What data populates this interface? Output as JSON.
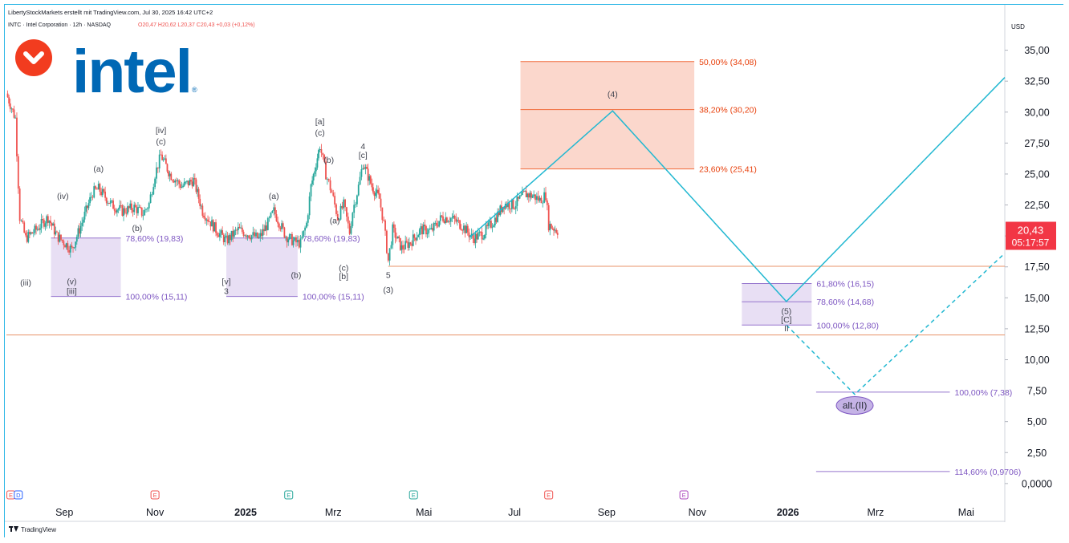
{
  "header": {
    "publisher": "LibertyStockMarkets erstellt mit TradingView.com, Jul 30, 2025 16:42 UTC+2",
    "symbol_line": "INTC · Intel Corporation · 12h · NASDAQ",
    "ohlc": "O20,47  H20,62  L20,37  C20,43  +0,03 (+0,12%)"
  },
  "logo": {
    "text": "intel",
    "registered": "®",
    "brand_color": "#0068b5",
    "badge_color": "#f23c1f"
  },
  "footer": {
    "brand": "TradingView"
  },
  "price_label": {
    "price": "20,43",
    "countdown": "05:17:57",
    "color": "#f23645"
  },
  "colors": {
    "candle_up": "#26a69a",
    "candle_down": "#ef5350",
    "projection": "#22b8d1",
    "fib_red": "#e8400c",
    "fib_purple": "#7e57c2",
    "support": "#e8936a"
  },
  "chart_data": {
    "type": "candlestick",
    "currency": "USD",
    "timeframe": "12h",
    "ylim": [
      -1.5,
      37.5
    ],
    "y_ticks": [
      35,
      32.5,
      30,
      27.5,
      25,
      22.5,
      20,
      17.5,
      15,
      12.5,
      10,
      7.5,
      5,
      2.5,
      0
    ],
    "y_tick_labels": [
      "35,00",
      "32,50",
      "30,00",
      "27,50",
      "25,00",
      "22,50",
      "20,00",
      "17,50",
      "15,00",
      "12,50",
      "10,00",
      "7,50",
      "5,00",
      "2,50",
      "0,0000"
    ],
    "x_range": [
      "2025-07-24T00:00",
      "2026-05-27T00:00"
    ],
    "x_ticks": [
      {
        "date": "2024-09-01",
        "label": "Sep",
        "bold": false
      },
      {
        "date": "2024-11-01",
        "label": "Nov",
        "bold": false
      },
      {
        "date": "2025-01-01",
        "label": "2025",
        "bold": true
      },
      {
        "date": "2025-03-01",
        "label": "Mrz",
        "bold": false
      },
      {
        "date": "2025-05-01",
        "label": "Mai",
        "bold": false
      },
      {
        "date": "2025-07-01",
        "label": "Jul",
        "bold": false
      },
      {
        "date": "2025-09-01",
        "label": "Sep",
        "bold": false
      },
      {
        "date": "2025-11-01",
        "label": "Nov",
        "bold": false
      },
      {
        "date": "2026-01-01",
        "label": "2026",
        "bold": true
      },
      {
        "date": "2026-03-01",
        "label": "Mrz",
        "bold": false
      },
      {
        "date": "2026-05-01",
        "label": "Mai",
        "bold": false
      }
    ],
    "price_path": [
      [
        "2024-07-24",
        31.5
      ],
      [
        "2024-07-30",
        29.5
      ],
      [
        "2024-08-02",
        21.5
      ],
      [
        "2024-08-06",
        19.8
      ],
      [
        "2024-08-13",
        20.5
      ],
      [
        "2024-08-21",
        21.5
      ],
      [
        "2024-08-27",
        20.0
      ],
      [
        "2024-09-06",
        18.9
      ],
      [
        "2024-09-12",
        20.8
      ],
      [
        "2024-09-20",
        23.5
      ],
      [
        "2024-09-24",
        23.8
      ],
      [
        "2024-10-03",
        22.5
      ],
      [
        "2024-10-10",
        22.0
      ],
      [
        "2024-10-18",
        22.3
      ],
      [
        "2024-10-24",
        21.8
      ],
      [
        "2024-10-28",
        22.6
      ],
      [
        "2024-11-01",
        25.0
      ],
      [
        "2024-11-05",
        26.5
      ],
      [
        "2024-11-11",
        25.0
      ],
      [
        "2024-11-19",
        24.0
      ],
      [
        "2024-11-27",
        24.5
      ],
      [
        "2024-12-03",
        22.0
      ],
      [
        "2024-12-12",
        20.5
      ],
      [
        "2024-12-19",
        19.6
      ],
      [
        "2024-12-27",
        20.5
      ],
      [
        "2025-01-06",
        20.0
      ],
      [
        "2025-01-10",
        19.8
      ],
      [
        "2025-01-16",
        21.0
      ],
      [
        "2025-01-20",
        22.0
      ],
      [
        "2025-01-28",
        20.0
      ],
      [
        "2025-02-03",
        19.5
      ],
      [
        "2025-02-07",
        19.4
      ],
      [
        "2025-02-11",
        21.0
      ],
      [
        "2025-02-14",
        24.0
      ],
      [
        "2025-02-20",
        27.3
      ],
      [
        "2025-02-24",
        25.0
      ],
      [
        "2025-02-28",
        23.5
      ],
      [
        "2025-03-04",
        21.5
      ],
      [
        "2025-03-08",
        22.5
      ],
      [
        "2025-03-12",
        20.3
      ],
      [
        "2025-03-14",
        22.0
      ],
      [
        "2025-03-18",
        24.0
      ],
      [
        "2025-03-21",
        25.9
      ],
      [
        "2025-03-27",
        24.0
      ],
      [
        "2025-04-01",
        23.0
      ],
      [
        "2025-04-04",
        21.0
      ],
      [
        "2025-04-07",
        18.0
      ],
      [
        "2025-04-10",
        20.5
      ],
      [
        "2025-04-16",
        19.0
      ],
      [
        "2025-04-22",
        19.5
      ],
      [
        "2025-04-29",
        20.5
      ],
      [
        "2025-05-06",
        20.4
      ],
      [
        "2025-05-13",
        21.5
      ],
      [
        "2025-05-20",
        21.4
      ],
      [
        "2025-05-27",
        20.8
      ],
      [
        "2025-06-03",
        19.8
      ],
      [
        "2025-06-10",
        20.2
      ],
      [
        "2025-06-17",
        21.2
      ],
      [
        "2025-06-24",
        22.6
      ],
      [
        "2025-07-01",
        22.5
      ],
      [
        "2025-07-08",
        23.4
      ],
      [
        "2025-07-14",
        23.2
      ],
      [
        "2025-07-18",
        22.9
      ],
      [
        "2025-07-22",
        23.3
      ],
      [
        "2025-07-24",
        20.9
      ],
      [
        "2025-07-30",
        20.43
      ]
    ],
    "projection_path": [
      [
        "2025-06-01",
        19.9
      ],
      [
        "2025-09-05",
        30.1
      ],
      [
        "2025-12-31",
        14.7
      ],
      [
        "2026-05-27",
        32.8
      ]
    ],
    "alt_projection_path": [
      [
        "2025-12-31",
        12.8
      ],
      [
        "2026-02-15",
        7.2
      ],
      [
        "2026-05-27",
        18.6
      ]
    ],
    "support_lines": [
      {
        "price": 17.55,
        "from": "2025-04-07"
      },
      {
        "price": 12.0,
        "from": "2024-07-24"
      }
    ],
    "fib_zones": [
      {
        "from": "2025-07-05",
        "to": "2025-10-30",
        "top": 34.08,
        "bottom": 25.41,
        "color": "#fbd3c6",
        "levels": [
          {
            "price": 34.08,
            "label": "50,00% (34,08)"
          },
          {
            "price": 30.2,
            "label": "38,20% (30,20)"
          },
          {
            "price": 25.41,
            "label": "23,60% (25,41)"
          }
        ],
        "label_color": "#e8400c",
        "line_color": "#f06a3a"
      },
      {
        "from": "2025-12-01",
        "to": "2026-01-17",
        "top": 16.15,
        "bottom": 12.8,
        "color": "#e5dbf3",
        "levels": [
          {
            "price": 16.15,
            "label": "61,80% (16,15)"
          },
          {
            "price": 14.68,
            "label": "78,60% (14,68)"
          },
          {
            "price": 12.8,
            "label": "100,00% (12,80)"
          }
        ],
        "label_color": "#7e57c2",
        "line_color": "#9575cd"
      },
      {
        "from": "2024-08-23",
        "to": "2024-10-09",
        "top": 19.83,
        "bottom": 15.11,
        "color": "#e5dbf3",
        "levels": [
          {
            "price": 19.83,
            "label": "78,60% (19,83)"
          },
          {
            "price": 15.11,
            "label": "100,00% (15,11)"
          }
        ],
        "label_color": "#7e57c2",
        "line_color": "#9575cd"
      },
      {
        "from": "2024-12-19",
        "to": "2025-02-05",
        "top": 19.83,
        "bottom": 15.11,
        "color": "#e5dbf3",
        "levels": [
          {
            "price": 19.83,
            "label": "78,60% (19,83)"
          },
          {
            "price": 15.11,
            "label": "100,00% (15,11)"
          }
        ],
        "label_color": "#7e57c2",
        "line_color": "#9575cd"
      },
      {
        "from": "2026-01-20",
        "to": "2026-04-20",
        "top": 7.38,
        "bottom": 7.38,
        "color": "none",
        "levels": [
          {
            "price": 7.38,
            "label": "100,00% (7,38)"
          }
        ],
        "label_color": "#7e57c2",
        "line_color": "#9575cd"
      },
      {
        "from": "2026-01-20",
        "to": "2026-04-20",
        "top": 0.9706,
        "bottom": 0.9706,
        "color": "none",
        "levels": [
          {
            "price": 0.9706,
            "label": "114,60% (0,9706)"
          }
        ],
        "label_color": "#7e57c2",
        "line_color": "#9575cd"
      }
    ],
    "wave_labels": [
      {
        "text": "(iii)",
        "date": "2024-08-06",
        "price": 16.0
      },
      {
        "text": "(iv)",
        "date": "2024-08-31",
        "price": 23.0
      },
      {
        "text": "(v)",
        "date": "2024-09-06",
        "price": 16.1
      },
      {
        "text": "[iii]",
        "date": "2024-09-06",
        "price": 15.3
      },
      {
        "text": "(a)",
        "date": "2024-09-24",
        "price": 25.2
      },
      {
        "text": "(b)",
        "date": "2024-10-20",
        "price": 20.4
      },
      {
        "text": "[iv]",
        "date": "2024-11-05",
        "price": 28.3
      },
      {
        "text": "(c)",
        "date": "2024-11-05",
        "price": 27.4
      },
      {
        "text": "[v]",
        "date": "2024-12-19",
        "price": 16.1
      },
      {
        "text": "3",
        "date": "2024-12-19",
        "price": 15.3
      },
      {
        "text": "(a)",
        "date": "2025-01-20",
        "price": 23.0
      },
      {
        "text": "(b)",
        "date": "2025-02-04",
        "price": 16.6
      },
      {
        "text": "[a]",
        "date": "2025-02-20",
        "price": 29.0
      },
      {
        "text": "(c)",
        "date": "2025-02-20",
        "price": 28.1
      },
      {
        "text": "(b)",
        "date": "2025-02-26",
        "price": 25.9
      },
      {
        "text": "(a)",
        "date": "2025-03-02",
        "price": 21.0
      },
      {
        "text": "(c)",
        "date": "2025-03-08",
        "price": 17.2
      },
      {
        "text": "[b]",
        "date": "2025-03-08",
        "price": 16.5
      },
      {
        "text": "4",
        "date": "2025-03-21",
        "price": 27.0
      },
      {
        "text": "[c]",
        "date": "2025-03-21",
        "price": 26.3
      },
      {
        "text": "5",
        "date": "2025-04-07",
        "price": 16.6
      },
      {
        "text": "(3)",
        "date": "2025-04-07",
        "price": 15.4
      },
      {
        "text": "(4)",
        "date": "2025-09-05",
        "price": 31.2
      },
      {
        "text": "(5)",
        "date": "2025-12-31",
        "price": 13.7
      },
      {
        "text": "[C]",
        "date": "2025-12-31",
        "price": 13.0
      },
      {
        "text": "II",
        "date": "2025-12-31",
        "price": 12.3
      }
    ],
    "alt_label": {
      "text": "alt.(II)",
      "date": "2026-02-15",
      "price": 6.05
    },
    "event_markers": [
      {
        "date": "2024-07-27",
        "type": "E",
        "color": "#ef5350"
      },
      {
        "date": "2024-08-01",
        "type": "D",
        "color": "#2962ff"
      },
      {
        "date": "2024-11-01",
        "type": "E",
        "color": "#ef5350"
      },
      {
        "date": "2025-01-30",
        "type": "E",
        "color": "#26a69a"
      },
      {
        "date": "2025-04-24",
        "type": "E",
        "color": "#26a69a"
      },
      {
        "date": "2025-07-24",
        "type": "E",
        "color": "#ef5350"
      },
      {
        "date": "2025-10-23",
        "type": "E",
        "color": "#ab47bc"
      }
    ]
  }
}
